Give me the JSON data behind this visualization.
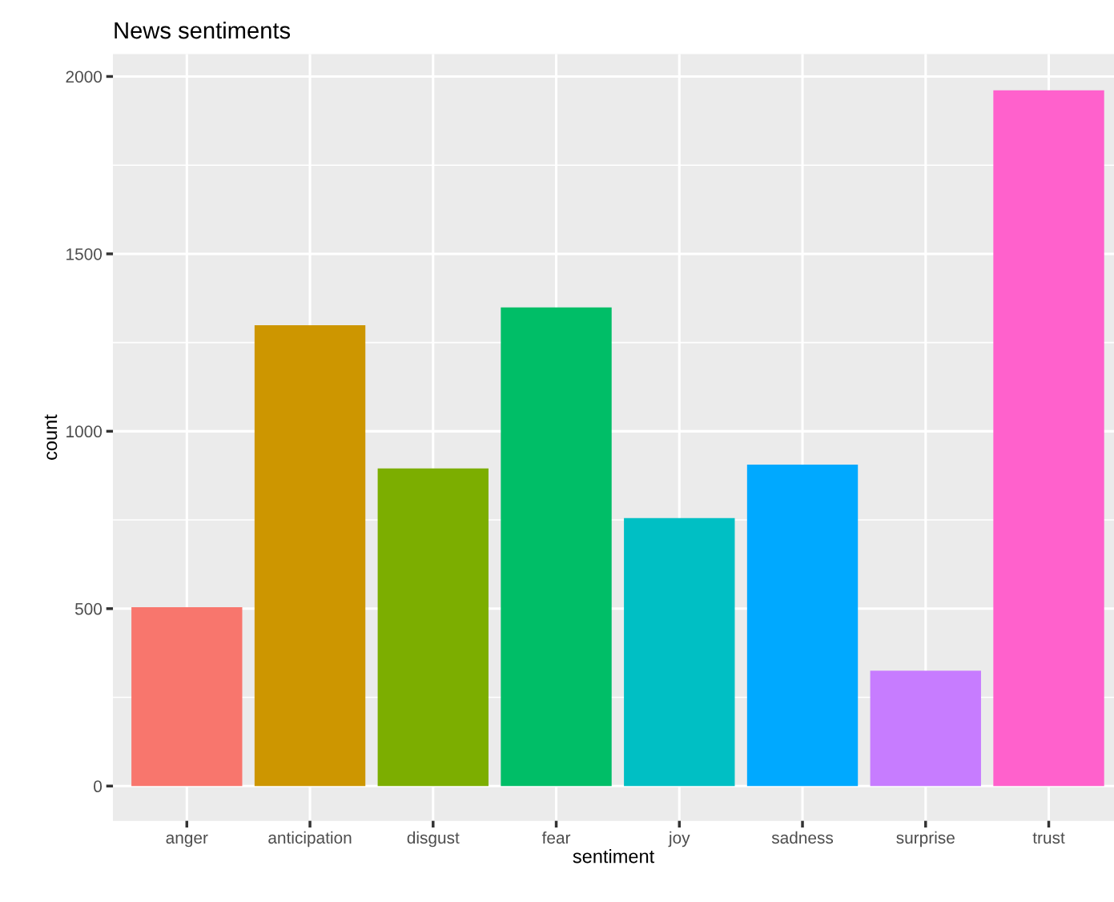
{
  "chart_data": {
    "type": "bar",
    "title": "News sentiments",
    "xlabel": "sentiment",
    "ylabel": "count",
    "categories": [
      "anger",
      "anticipation",
      "disgust",
      "fear",
      "joy",
      "sadness",
      "surprise",
      "trust"
    ],
    "values": [
      504,
      1299,
      895,
      1349,
      755,
      906,
      325,
      1961
    ],
    "colors": [
      "#f8766d",
      "#cd9600",
      "#7cae00",
      "#00be67",
      "#00bfc4",
      "#00a9ff",
      "#c77cff",
      "#ff61cc"
    ],
    "ylim": [
      -98,
      2063
    ],
    "yticks": [
      0,
      500,
      1000,
      1500,
      2000
    ],
    "grid": true,
    "legend": false
  }
}
